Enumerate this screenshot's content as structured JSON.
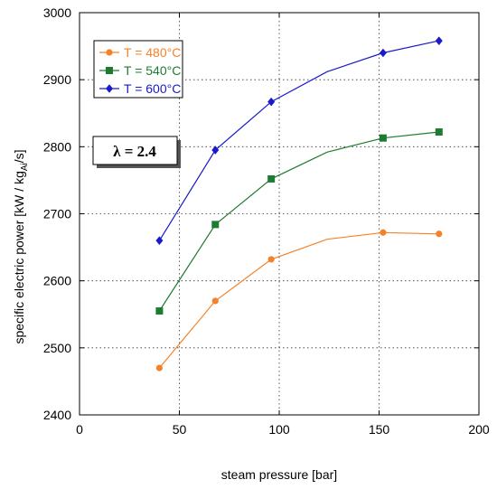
{
  "chart_data": {
    "type": "line",
    "xlabel": "steam pressure [bar]",
    "ylabel_main": "specific electric power [kW / kg",
    "ylabel_sub": "Ai",
    "ylabel_end": "/s]",
    "xlim": [
      0,
      200
    ],
    "ylim": [
      2400,
      3000
    ],
    "xticks": [
      0,
      50,
      100,
      150,
      200
    ],
    "yticks": [
      2400,
      2500,
      2600,
      2700,
      2800,
      2900,
      3000
    ],
    "xtick_labels": [
      "0",
      "50",
      "100",
      "150",
      "200"
    ],
    "ytick_labels": [
      "2400",
      "2500",
      "2600",
      "2700",
      "2800",
      "2900",
      "3000"
    ],
    "grid": true,
    "legend_position": "top-left",
    "annotation": "λ = 2.4",
    "series": [
      {
        "name": "T = 480°C",
        "color": "#f5822a",
        "marker": "circle",
        "points": [
          [
            40,
            2470
          ],
          [
            68,
            2570
          ],
          [
            96,
            2632
          ],
          [
            124,
            2662
          ],
          [
            152,
            2672
          ],
          [
            180,
            2670
          ]
        ],
        "marker_indices": [
          0,
          1,
          2,
          4,
          5
        ]
      },
      {
        "name": "T = 540°C",
        "color": "#1e7b32",
        "marker": "square",
        "points": [
          [
            40,
            2555
          ],
          [
            68,
            2684
          ],
          [
            96,
            2752
          ],
          [
            124,
            2792
          ],
          [
            152,
            2813
          ],
          [
            180,
            2822
          ]
        ],
        "marker_indices": [
          0,
          1,
          2,
          4,
          5
        ]
      },
      {
        "name": "T = 600°C",
        "color": "#1a1acd",
        "marker": "diamond",
        "points": [
          [
            40,
            2660
          ],
          [
            68,
            2795
          ],
          [
            96,
            2867
          ],
          [
            124,
            2912
          ],
          [
            152,
            2940
          ],
          [
            180,
            2958
          ]
        ],
        "marker_indices": [
          0,
          1,
          2,
          4,
          5
        ]
      }
    ]
  }
}
